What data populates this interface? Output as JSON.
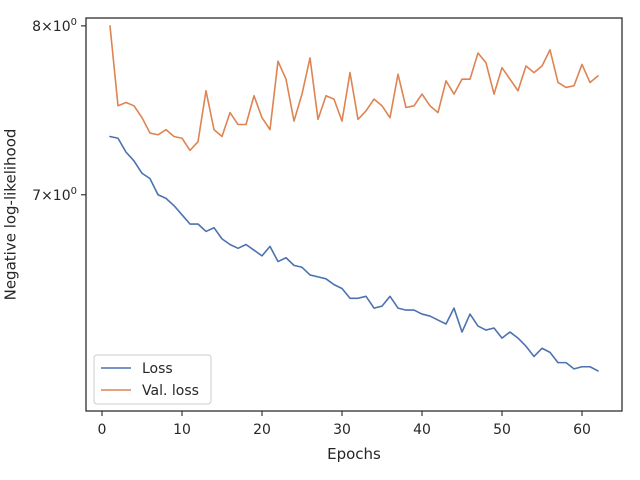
{
  "chart_data": {
    "type": "line",
    "xlabel": "Epochs",
    "ylabel": "Negative log-likelihood",
    "yscale": "log",
    "xlim": [
      -2,
      65
    ],
    "ylim": [
      5.9,
      8.05
    ],
    "x_ticks": [
      {
        "value": 0,
        "label": "0"
      },
      {
        "value": 10,
        "label": "10"
      },
      {
        "value": 20,
        "label": "20"
      },
      {
        "value": 30,
        "label": "30"
      },
      {
        "value": 40,
        "label": "40"
      },
      {
        "value": 50,
        "label": "50"
      },
      {
        "value": 60,
        "label": "60"
      }
    ],
    "y_ticks": [
      {
        "value": 7,
        "base": "7",
        "times": "×",
        "pow_base": "10",
        "exp": "0"
      },
      {
        "value": 8,
        "base": "8",
        "times": "×",
        "pow_base": "10",
        "exp": "0"
      }
    ],
    "grid": false,
    "legend_position": "lower-left",
    "x": [
      1,
      2,
      3,
      4,
      5,
      6,
      7,
      8,
      9,
      10,
      11,
      12,
      13,
      14,
      15,
      16,
      17,
      18,
      19,
      20,
      21,
      22,
      23,
      24,
      25,
      26,
      27,
      28,
      29,
      30,
      31,
      32,
      33,
      34,
      35,
      36,
      37,
      38,
      39,
      40,
      41,
      42,
      43,
      44,
      45,
      46,
      47,
      48,
      49,
      50,
      51,
      52,
      53,
      54,
      55,
      56,
      57,
      58,
      59,
      60,
      61,
      62
    ],
    "series": [
      {
        "name": "Loss",
        "color": "#4c72b0",
        "values": [
          7.33,
          7.32,
          7.24,
          7.19,
          7.12,
          7.09,
          7.0,
          6.98,
          6.94,
          6.89,
          6.84,
          6.84,
          6.8,
          6.82,
          6.76,
          6.73,
          6.71,
          6.73,
          6.7,
          6.67,
          6.72,
          6.64,
          6.66,
          6.62,
          6.61,
          6.57,
          6.56,
          6.55,
          6.52,
          6.5,
          6.45,
          6.45,
          6.46,
          6.4,
          6.41,
          6.46,
          6.4,
          6.39,
          6.39,
          6.37,
          6.36,
          6.34,
          6.32,
          6.4,
          6.28,
          6.37,
          6.31,
          6.29,
          6.3,
          6.25,
          6.28,
          6.25,
          6.21,
          6.16,
          6.2,
          6.18,
          6.13,
          6.13,
          6.1,
          6.11,
          6.11,
          6.09
        ]
      },
      {
        "name": "Val. loss",
        "color": "#dd8452",
        "values": [
          8.0,
          7.51,
          7.53,
          7.51,
          7.44,
          7.35,
          7.34,
          7.37,
          7.33,
          7.32,
          7.25,
          7.3,
          7.6,
          7.37,
          7.33,
          7.47,
          7.4,
          7.4,
          7.57,
          7.44,
          7.37,
          7.78,
          7.67,
          7.42,
          7.58,
          7.8,
          7.43,
          7.57,
          7.55,
          7.42,
          7.71,
          7.43,
          7.48,
          7.55,
          7.51,
          7.44,
          7.7,
          7.5,
          7.51,
          7.58,
          7.51,
          7.47,
          7.66,
          7.58,
          7.67,
          7.67,
          7.83,
          7.77,
          7.58,
          7.74,
          7.67,
          7.6,
          7.75,
          7.71,
          7.75,
          7.85,
          7.65,
          7.62,
          7.63,
          7.76,
          7.65,
          7.69
        ]
      }
    ]
  }
}
